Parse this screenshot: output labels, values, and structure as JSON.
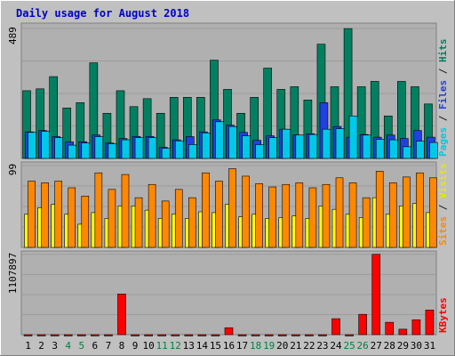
{
  "chart_data": {
    "type": "bar",
    "title": "Daily usage for August 2018",
    "categories": [
      "1",
      "2",
      "3",
      "4",
      "5",
      "6",
      "7",
      "8",
      "9",
      "10",
      "11",
      "12",
      "13",
      "14",
      "15",
      "16",
      "17",
      "18",
      "19",
      "20",
      "21",
      "22",
      "23",
      "24",
      "25",
      "26",
      "27",
      "28",
      "29",
      "30",
      "31"
    ],
    "weekend_days": [
      4,
      5,
      11,
      12,
      18,
      19,
      25,
      26
    ],
    "panels": [
      {
        "name": "pages-files-hits",
        "ymax": 489,
        "ymax_label": "489",
        "ylabel_parts": [
          {
            "text": "Pages",
            "color": "#00c8e8"
          },
          {
            "text": " / ",
            "color": "#1a1a1a"
          },
          {
            "text": "Files",
            "color": "#2040e0"
          },
          {
            "text": " / ",
            "color": "#1a1a1a"
          },
          {
            "text": "Hits",
            "color": "#008060"
          }
        ],
        "series": [
          {
            "name": "Hits",
            "color": "#008060",
            "values": [
              255,
              262,
              308,
              190,
              210,
              360,
              170,
              255,
              195,
              225,
              170,
              230,
              230,
              230,
              370,
              260,
              170,
              230,
              340,
              260,
              270,
              220,
              430,
              270,
              489,
              270,
              290,
              160,
              290,
              270,
              205
            ]
          },
          {
            "name": "Files",
            "color": "#2040e0",
            "values": [
              100,
              105,
              82,
              62,
              63,
              88,
              58,
              75,
              83,
              83,
              42,
              70,
              82,
              100,
              145,
              125,
              98,
              68,
              85,
              110,
              88,
              93,
              210,
              120,
              80,
              90,
              80,
              88,
              75,
              105,
              80
            ]
          },
          {
            "name": "Pages",
            "color": "#00c8e8",
            "values": [
              98,
              102,
              78,
              50,
              58,
              82,
              55,
              70,
              78,
              78,
              38,
              66,
              52,
              96,
              138,
              120,
              85,
              52,
              78,
              110,
              88,
              90,
              110,
              112,
              160,
              88,
              72,
              70,
              44,
              65,
              60
            ]
          }
        ]
      },
      {
        "name": "sites-visits",
        "ymax": 99,
        "ymax_label": "99",
        "ylabel_parts": [
          {
            "text": "Sites",
            "color": "#ff8800"
          },
          {
            "text": " / ",
            "color": "#1a1a1a"
          },
          {
            "text": "Visits",
            "color": "#e8e800"
          }
        ],
        "series": [
          {
            "name": "Visits",
            "color": "#ffff00",
            "values": [
              40,
              48,
              52,
              40,
              28,
              42,
              35,
              50,
              50,
              45,
              35,
              40,
              35,
              43,
              42,
              52,
              37,
              40,
              35,
              36,
              38,
              35,
              50,
              46,
              40,
              36,
              60,
              40,
              50,
              53,
              42
            ]
          },
          {
            "name": "Sites",
            "color": "#ff8800",
            "values": [
              80,
              78,
              80,
              72,
              62,
              90,
              70,
              88,
              60,
              76,
              56,
              70,
              60,
              90,
              80,
              95,
              86,
              77,
              73,
              76,
              78,
              72,
              76,
              84,
              78,
              60,
              92,
              78,
              85,
              90,
              84
            ]
          }
        ]
      },
      {
        "name": "kbytes",
        "ymax": 1107897,
        "ymax_label": "1107897",
        "ylabel_parts": [
          {
            "text": "KBytes",
            "color": "#ff0000"
          }
        ],
        "series": [
          {
            "name": "KBytes",
            "color": "#ff0000",
            "values": [
              0,
              0,
              0,
              0,
              0,
              0,
              0,
              560000,
              0,
              0,
              0,
              0,
              0,
              0,
              0,
              95000,
              0,
              0,
              0,
              0,
              0,
              0,
              0,
              220000,
              0,
              280000,
              1107897,
              170000,
              75000,
              205000,
              340000
            ]
          }
        ]
      }
    ]
  },
  "colors": {
    "background": "#c0c0c0",
    "plot_bg": "#b0b0b0",
    "title": "#0000cc",
    "weekday_label": "#000000",
    "weekend_label": "#008040"
  }
}
